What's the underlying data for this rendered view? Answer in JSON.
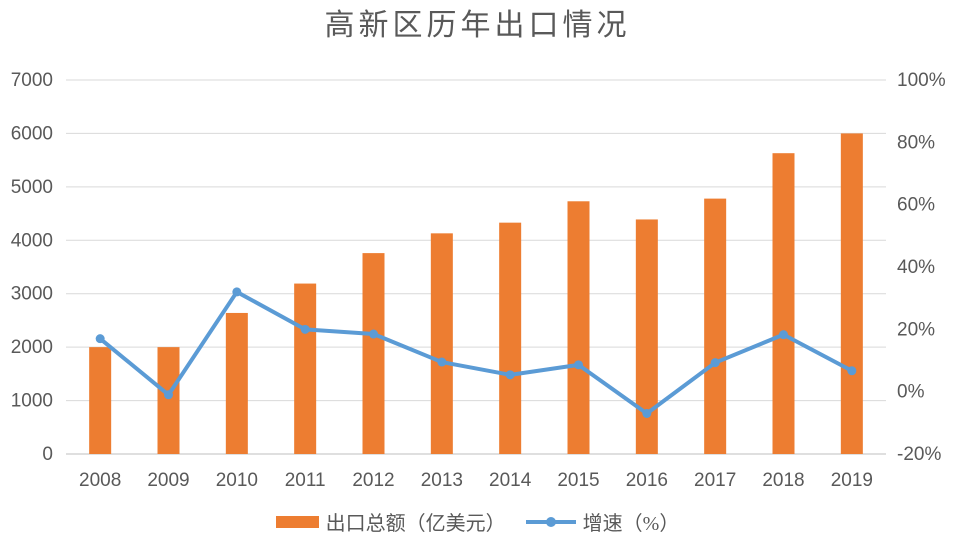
{
  "chart_data": {
    "type": "bar+line combo (dual axis)",
    "title": "高新区历年出口情况",
    "categories": [
      "2008",
      "2009",
      "2010",
      "2011",
      "2012",
      "2013",
      "2014",
      "2015",
      "2016",
      "2017",
      "2018",
      "2019"
    ],
    "series": [
      {
        "name": "出口总额（亿美元）",
        "type": "bar",
        "axis": "left",
        "color": "#ED7D31",
        "values": [
          2000,
          2000,
          2640,
          3190,
          3760,
          4130,
          4330,
          4730,
          4390,
          4780,
          5630,
          6000
        ]
      },
      {
        "name": "增速（%）",
        "type": "line",
        "axis": "right",
        "color": "#5B9BD5",
        "values": [
          17,
          -1,
          32,
          20,
          18.5,
          9.5,
          5.4,
          8.6,
          -7,
          9.3,
          18.3,
          6.7
        ]
      }
    ],
    "left_axis": {
      "min": 0,
      "max": 7000,
      "step": 1000,
      "tick_labels": [
        "0",
        "1000",
        "2000",
        "3000",
        "4000",
        "5000",
        "6000",
        "7000"
      ]
    },
    "right_axis": {
      "min": -20,
      "max": 100,
      "step": 20,
      "tick_labels": [
        "-20%",
        "0%",
        "20%",
        "40%",
        "60%",
        "80%",
        "100%"
      ]
    },
    "grid": true,
    "legend_position": "bottom",
    "colors": {
      "gridline": "#D9D9D9",
      "axis_line": "#BFBFBF",
      "label": "#595959",
      "title": "#595959"
    }
  }
}
